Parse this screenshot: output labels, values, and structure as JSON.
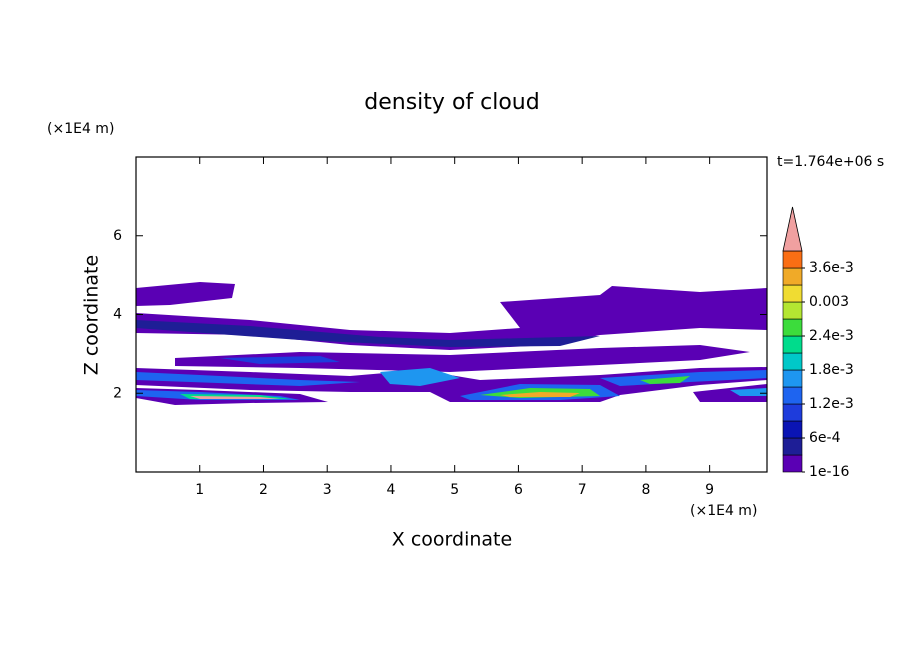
{
  "chart_data": {
    "type": "contour",
    "title": "density of cloud",
    "x_label": "X coordinate",
    "y_label": "Z coordinate",
    "x_unit": "(×1E4 m)",
    "y_unit": "(×1E4 m)",
    "time_label": "t=1.764e+06 s",
    "xlim": [
      0,
      9.9
    ],
    "xticks": [
      1,
      2,
      3,
      4,
      5,
      6,
      7,
      8,
      9
    ],
    "ylim": [
      0,
      8
    ],
    "yticks": [
      2,
      4,
      6
    ],
    "colorbar": {
      "lim": [
        1e-16,
        0.0039
      ],
      "colors": [
        "#5a00b4",
        "#1e1e96",
        "#0a14b4",
        "#1e3cdc",
        "#1e64f0",
        "#1e96f0",
        "#00c8c8",
        "#00dc8c",
        "#3cdc3c",
        "#b4e632",
        "#f0dc32",
        "#f0aa28",
        "#fa6e14"
      ],
      "extend_color": "#f0a0a0",
      "ticks": [
        1e-16,
        {
          "value": 0.0006,
          "label": "6e-4"
        },
        {
          "value": 0.0012,
          "label": "1.2e-3"
        },
        {
          "value": 0.0018,
          "label": "1.8e-3"
        },
        {
          "value": 0.0024,
          "label": "2.4e-3"
        },
        0.003,
        {
          "value": 0.0036,
          "label": "3.6e-3"
        }
      ]
    }
  }
}
